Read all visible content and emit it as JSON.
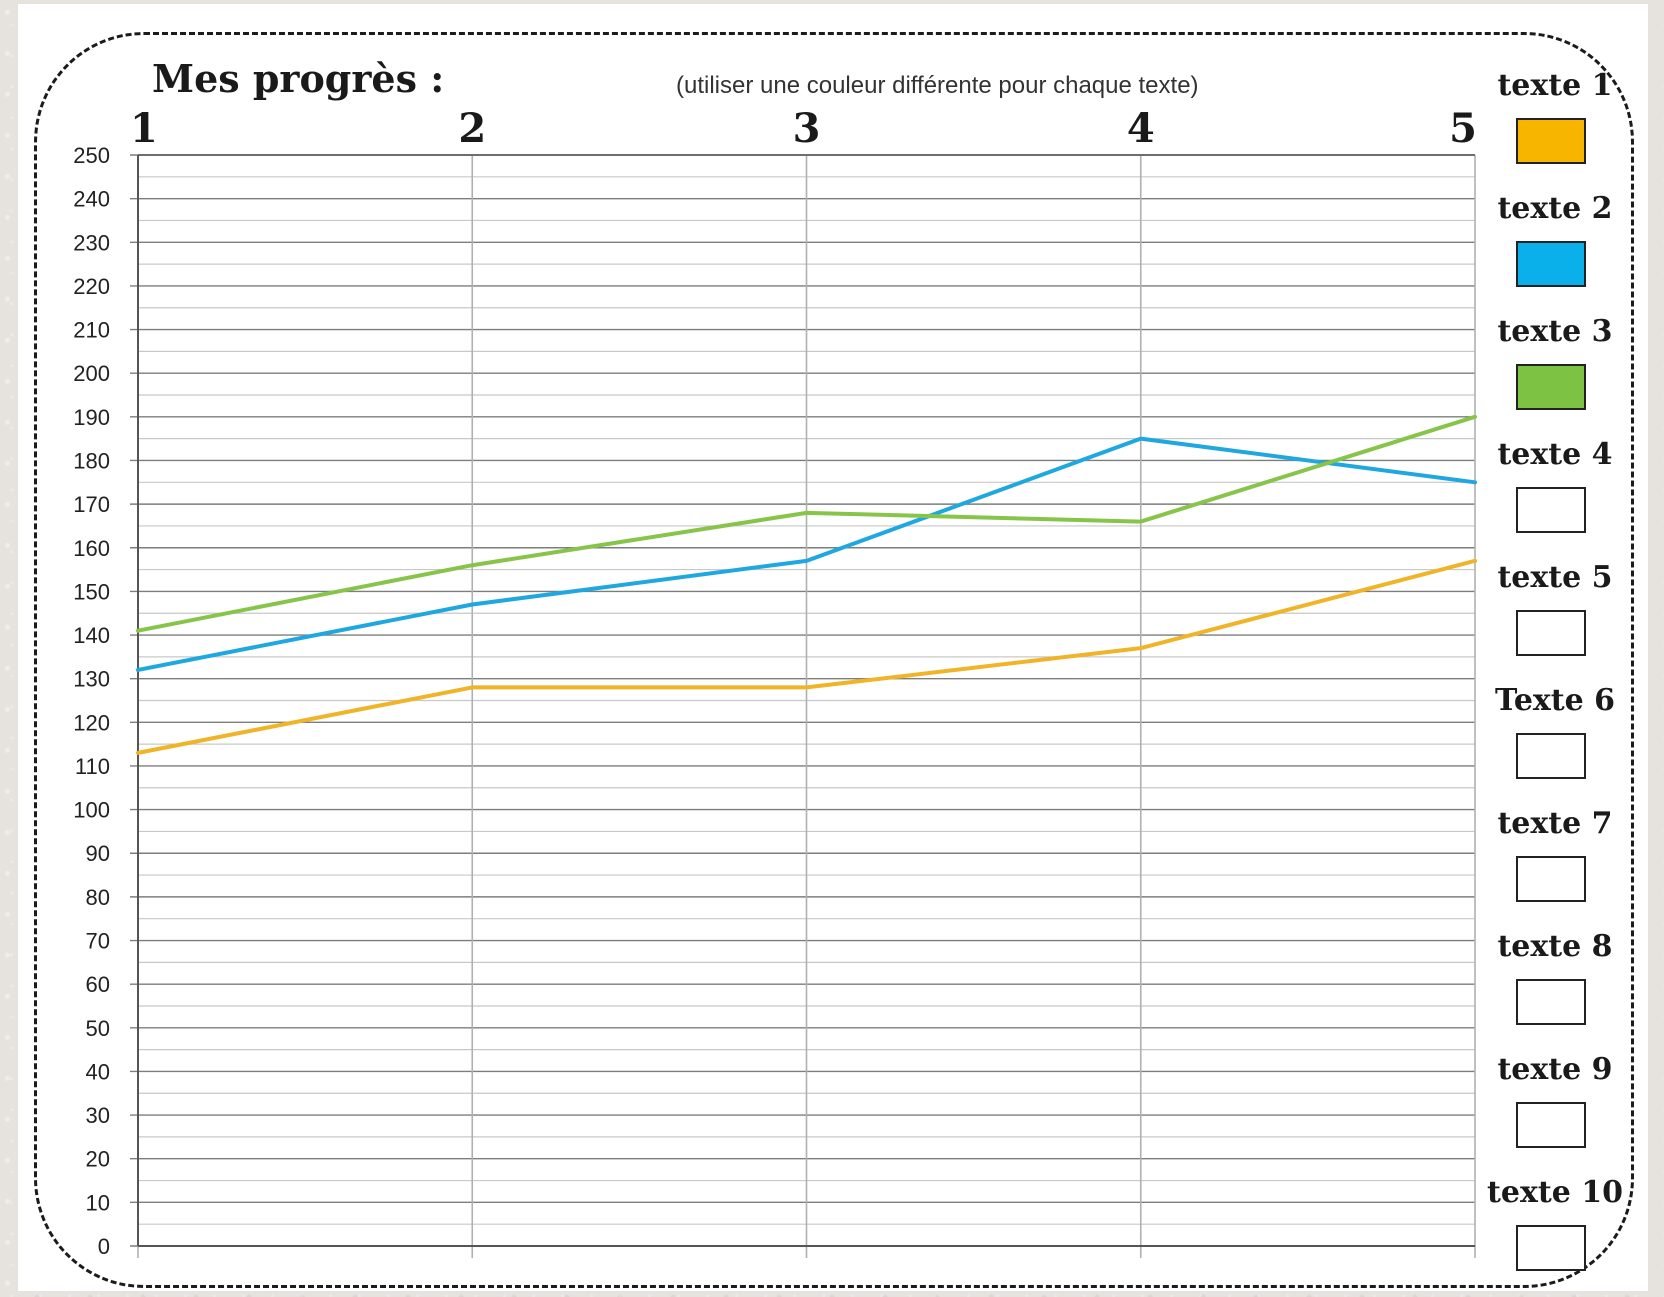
{
  "header": {
    "title": "Mes progrès :",
    "subtitle": "(utiliser une couleur différente pour chaque texte)"
  },
  "chart_data": {
    "type": "line",
    "categories": [
      "1",
      "2",
      "3",
      "4",
      "5"
    ],
    "ylim": [
      0,
      250
    ],
    "y_ticks": [
      0,
      10,
      20,
      30,
      40,
      50,
      60,
      70,
      80,
      90,
      100,
      110,
      120,
      130,
      140,
      150,
      160,
      170,
      180,
      190,
      200,
      210,
      220,
      230,
      240,
      250
    ],
    "y_minor_step": 5,
    "grid": true,
    "legend_position": "right",
    "series": [
      {
        "name": "texte 1",
        "color": "#f0b429",
        "values": [
          113,
          128,
          128,
          137,
          157
        ]
      },
      {
        "name": "texte 2",
        "color": "#1fa8e0",
        "values": [
          132,
          147,
          157,
          185,
          175
        ]
      },
      {
        "name": "texte 3",
        "color": "#86c54a",
        "values": [
          141,
          156,
          168,
          166,
          190
        ]
      }
    ]
  },
  "legend": {
    "items": [
      {
        "label": "texte 1",
        "color": "#f7b500"
      },
      {
        "label": "texte 2",
        "color": "#0ab0ea"
      },
      {
        "label": "texte 3",
        "color": "#7dc243"
      },
      {
        "label": "texte 4",
        "color": "#ffffff"
      },
      {
        "label": "texte 5",
        "color": "#ffffff"
      },
      {
        "label": "Texte 6",
        "color": "#ffffff"
      },
      {
        "label": "texte 7",
        "color": "#ffffff"
      },
      {
        "label": "texte 8",
        "color": "#ffffff"
      },
      {
        "label": "texte 9",
        "color": "#ffffff"
      },
      {
        "label": "texte 10",
        "color": "#ffffff"
      }
    ]
  }
}
